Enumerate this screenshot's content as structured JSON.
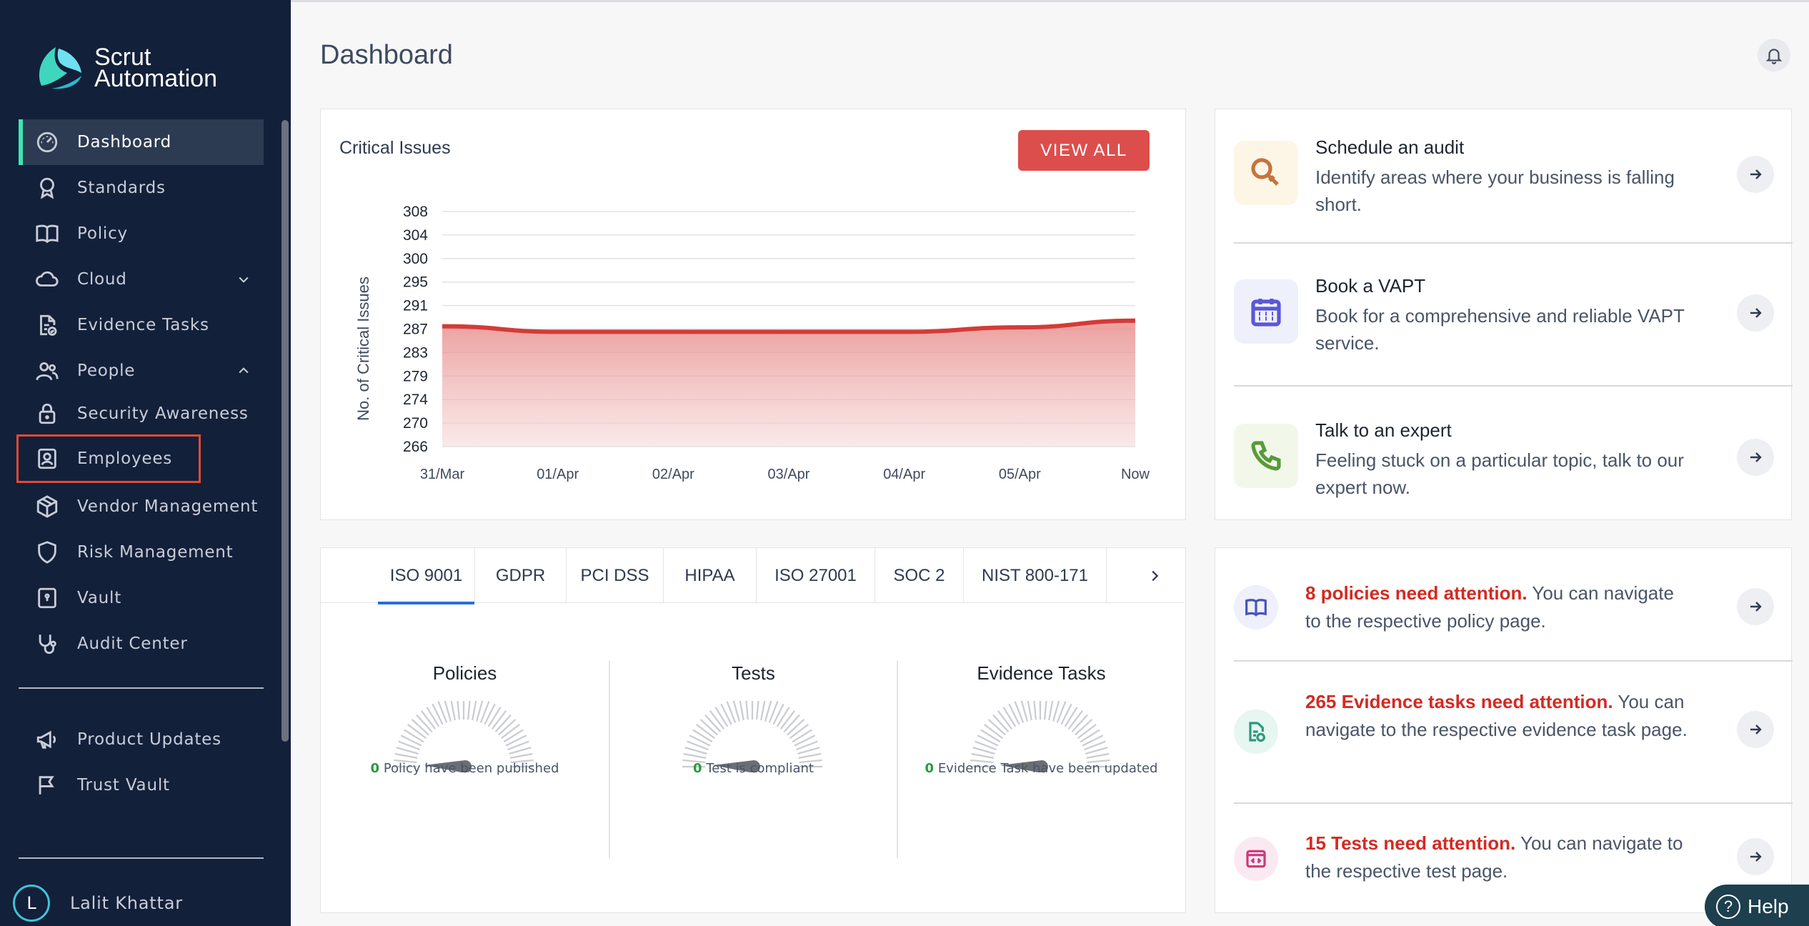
{
  "brand": {
    "line1": "Scrut",
    "line2": "Automation"
  },
  "sidebar": {
    "items": [
      {
        "label": "Dashboard",
        "icon": "dashboard-gauge-icon"
      },
      {
        "label": "Standards",
        "icon": "award-icon"
      },
      {
        "label": "Policy",
        "icon": "book-icon"
      },
      {
        "label": "Cloud",
        "icon": "cloud-icon"
      },
      {
        "label": "Evidence Tasks",
        "icon": "document-check-icon"
      },
      {
        "label": "People",
        "icon": "people-icon"
      },
      {
        "label": "Security Awareness",
        "icon": "lock-icon"
      },
      {
        "label": "Employees",
        "icon": "user-badge-icon"
      },
      {
        "label": "Vendor Management",
        "icon": "package-icon"
      },
      {
        "label": "Risk Management",
        "icon": "shield-icon"
      },
      {
        "label": "Vault",
        "icon": "vault-icon"
      },
      {
        "label": "Audit Center",
        "icon": "stethoscope-icon"
      }
    ],
    "bottom_items": [
      {
        "label": "Product Updates",
        "icon": "megaphone-icon"
      },
      {
        "label": "Trust Vault",
        "icon": "flag-icon"
      }
    ],
    "user": {
      "initial": "L",
      "name": "Lalit Khattar"
    }
  },
  "header": {
    "title": "Dashboard"
  },
  "critical_issues": {
    "title": "Critical Issues",
    "view_all": "VIEW ALL"
  },
  "chart_data": {
    "type": "area",
    "ylabel": "No. of Critical Issues",
    "y_ticks": [
      308,
      304,
      300,
      295,
      291,
      287,
      283,
      279,
      274,
      270,
      266
    ],
    "ylim": [
      266,
      308
    ],
    "x": [
      "31/Mar",
      "01/Apr",
      "02/Apr",
      "03/Apr",
      "04/Apr",
      "05/Apr",
      "Now"
    ],
    "series": [
      {
        "values": [
          287.5,
          286.5,
          286.5,
          286.5,
          286.5,
          287.3,
          288.5
        ]
      }
    ],
    "color": "#d33b38"
  },
  "standards_tabs": {
    "tabs": [
      "ISO 9001",
      "GDPR",
      "PCI DSS",
      "HIPAA",
      "ISO 27001",
      "SOC 2",
      "NIST 800-171"
    ],
    "active": 0
  },
  "gauges": [
    {
      "title": "Policies",
      "count": "0",
      "caption": "Policy have been published"
    },
    {
      "title": "Tests",
      "count": "0",
      "caption": "Test is compliant"
    },
    {
      "title": "Evidence Tasks",
      "count": "0",
      "caption": "Evidence Task have been updated"
    }
  ],
  "actions": [
    {
      "title": "Schedule an audit",
      "desc": "Identify areas where your business is falling short.",
      "icon": "search-icon",
      "bg": "#fdf6e7",
      "color": "#c4753a"
    },
    {
      "title": "Book a VAPT",
      "desc": "Book for a comprehensive and reliable VAPT service.",
      "icon": "calendar-icon",
      "bg": "#eef0fb",
      "color": "#5b57d6"
    },
    {
      "title": "Talk to an expert",
      "desc": "Feeling stuck on a particular topic, talk to our expert now.",
      "icon": "phone-icon",
      "bg": "#f1f8ea",
      "color": "#5a9a3a"
    }
  ],
  "attention": [
    {
      "highlight": "8 policies need attention.",
      "rest": " You can navigate to the respective policy page.",
      "icon": "book-icon",
      "bg": "#eef0fb",
      "color": "#4a55b8"
    },
    {
      "highlight": "265 Evidence tasks need attention.",
      "rest": " You can navigate to the respective evidence task page.",
      "icon": "document-check-icon",
      "bg": "#e6f6f1",
      "color": "#2a9a7a"
    },
    {
      "highlight": "15 Tests need attention.",
      "rest": " You can navigate to the respective test page.",
      "icon": "code-icon",
      "bg": "#fbe9f1",
      "color": "#c93a78"
    }
  ],
  "help": {
    "label": "Help"
  }
}
